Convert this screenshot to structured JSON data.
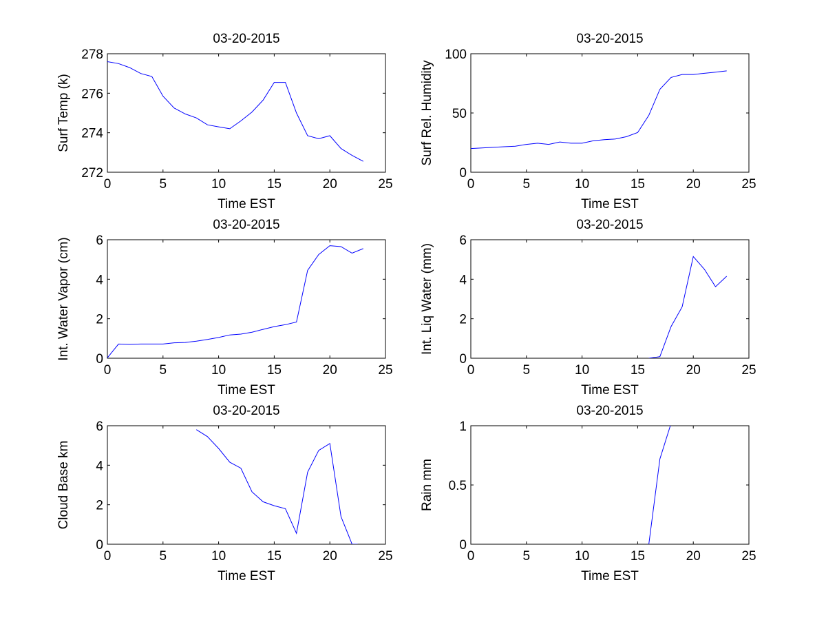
{
  "chart_data": [
    {
      "type": "line",
      "title": "03-20-2015",
      "xlabel": "Time EST",
      "ylabel": "Surf Temp (k)",
      "xlim": [
        0,
        25
      ],
      "ylim": [
        272,
        278
      ],
      "xticks": [
        0,
        5,
        10,
        15,
        20,
        25
      ],
      "yticks": [
        272,
        274,
        276,
        278
      ],
      "series": [
        {
          "name": "Surf Temp",
          "x": [
            0,
            1,
            2,
            3,
            4,
            5,
            6,
            7,
            8,
            9,
            10,
            11,
            12,
            13,
            14,
            15,
            16,
            17,
            18,
            19,
            20,
            21,
            22,
            23
          ],
          "y": [
            277.6,
            277.5,
            277.3,
            277.0,
            276.85,
            275.85,
            275.25,
            274.95,
            274.75,
            274.4,
            274.3,
            274.2,
            274.6,
            275.05,
            275.65,
            276.55,
            276.55,
            275.0,
            273.85,
            273.7,
            273.85,
            273.2,
            272.85,
            272.55
          ]
        }
      ]
    },
    {
      "type": "line",
      "title": "03-20-2015",
      "xlabel": "Time EST",
      "ylabel": "Surf Rel. Humidity",
      "xlim": [
        0,
        25
      ],
      "ylim": [
        0,
        100
      ],
      "xticks": [
        0,
        5,
        10,
        15,
        20,
        25
      ],
      "yticks": [
        0,
        50,
        100
      ],
      "series": [
        {
          "name": "Surf Rel. Humidity",
          "x": [
            0,
            1,
            2,
            3,
            4,
            5,
            6,
            7,
            8,
            9,
            10,
            11,
            12,
            13,
            14,
            15,
            16,
            17,
            18,
            19,
            20,
            21,
            22,
            23
          ],
          "y": [
            20,
            20.5,
            21,
            21.5,
            22,
            23.5,
            24.5,
            23.5,
            25.5,
            24.5,
            24.5,
            26.5,
            27.5,
            28,
            30,
            33.5,
            48,
            70,
            80,
            82.5,
            82.5,
            83.5,
            84.5,
            85.5
          ]
        }
      ]
    },
    {
      "type": "line",
      "title": "03-20-2015",
      "xlabel": "Time EST",
      "ylabel": "Int. Water Vapor (cm)",
      "xlim": [
        0,
        25
      ],
      "ylim": [
        0,
        6
      ],
      "xticks": [
        0,
        5,
        10,
        15,
        20,
        25
      ],
      "yticks": [
        0,
        2,
        4,
        6
      ],
      "series": [
        {
          "name": "Int. Water Vapor",
          "x": [
            0,
            1,
            2,
            3,
            4,
            5,
            6,
            7,
            8,
            9,
            10,
            11,
            12,
            13,
            14,
            15,
            16,
            17,
            18,
            19,
            20,
            21,
            22,
            23
          ],
          "y": [
            0.02,
            0.72,
            0.7,
            0.72,
            0.72,
            0.72,
            0.78,
            0.8,
            0.86,
            0.95,
            1.05,
            1.18,
            1.22,
            1.32,
            1.46,
            1.6,
            1.7,
            1.83,
            4.45,
            5.25,
            5.7,
            5.65,
            5.32,
            5.55
          ]
        }
      ]
    },
    {
      "type": "line",
      "title": "03-20-2015",
      "xlabel": "Time EST",
      "ylabel": "Int. Liq Water (mm)",
      "xlim": [
        0,
        25
      ],
      "ylim": [
        0,
        6
      ],
      "xticks": [
        0,
        5,
        10,
        15,
        20,
        25
      ],
      "yticks": [
        0,
        2,
        4,
        6
      ],
      "series": [
        {
          "name": "Int. Liq Water",
          "x": [
            16,
            17,
            18,
            19,
            20,
            21,
            22,
            23
          ],
          "y": [
            0,
            0.08,
            1.6,
            2.6,
            5.15,
            4.5,
            3.62,
            4.15
          ]
        }
      ]
    },
    {
      "type": "line",
      "title": "03-20-2015",
      "xlabel": "Time EST",
      "ylabel": "Cloud Base km",
      "xlim": [
        0,
        25
      ],
      "ylim": [
        0,
        6
      ],
      "xticks": [
        0,
        5,
        10,
        15,
        20,
        25
      ],
      "yticks": [
        0,
        2,
        4,
        6
      ],
      "series": [
        {
          "name": "Cloud Base",
          "x": [
            8,
            9,
            10,
            11,
            12,
            13,
            14,
            15,
            16,
            17,
            18,
            19,
            20,
            21,
            22,
            22.5
          ],
          "y": [
            5.8,
            5.45,
            4.85,
            4.15,
            3.85,
            2.65,
            2.15,
            1.95,
            1.8,
            0.55,
            3.65,
            4.75,
            5.1,
            1.4,
            0.0,
            0.0
          ]
        }
      ]
    },
    {
      "type": "line",
      "title": "03-20-2015",
      "xlabel": "Time EST",
      "ylabel": "Rain mm",
      "xlim": [
        0,
        25
      ],
      "ylim": [
        0,
        1
      ],
      "xticks": [
        0,
        5,
        10,
        15,
        20,
        25
      ],
      "yticks": [
        0,
        0.5,
        1
      ],
      "series": [
        {
          "name": "Rain",
          "x": [
            16,
            17,
            18
          ],
          "y": [
            0,
            0.72,
            1.02
          ]
        }
      ]
    }
  ]
}
